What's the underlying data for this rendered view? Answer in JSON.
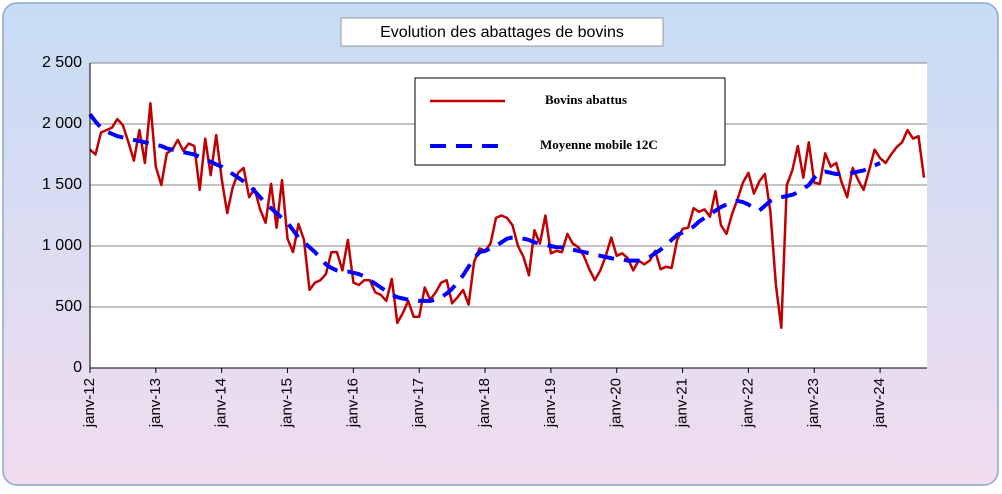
{
  "chart_data": {
    "type": "line",
    "title": "Evolution des abattages de bovins",
    "categories": [
      "janv-12",
      null,
      null,
      null,
      null,
      null,
      null,
      null,
      null,
      null,
      null,
      null,
      "janv-13",
      null,
      null,
      null,
      null,
      null,
      null,
      null,
      null,
      null,
      null,
      null,
      "janv-14",
      null,
      null,
      null,
      null,
      null,
      null,
      null,
      null,
      null,
      null,
      null,
      "janv-15",
      null,
      null,
      null,
      null,
      null,
      null,
      null,
      null,
      null,
      null,
      null,
      "janv-16",
      null,
      null,
      null,
      null,
      null,
      null,
      null,
      null,
      null,
      null,
      null,
      "janv-17",
      null,
      null,
      null,
      null,
      null,
      null,
      null,
      null,
      null,
      null,
      null,
      "janv-18",
      null,
      null,
      null,
      null,
      null,
      null,
      null,
      null,
      null,
      null,
      null,
      "janv-19",
      null,
      null,
      null,
      null,
      null,
      null,
      null,
      null,
      null,
      null,
      null,
      "janv-20",
      null,
      null,
      null,
      null,
      null,
      null,
      null,
      null,
      null,
      null,
      null,
      "janv-21",
      null,
      null,
      null,
      null,
      null,
      null,
      null,
      null,
      null,
      null,
      null,
      "janv-22",
      null,
      null,
      null,
      null,
      null,
      null,
      null,
      null,
      null,
      null,
      null,
      "janv-23",
      null,
      null,
      null,
      null,
      null,
      null,
      null,
      null,
      null,
      null,
      null,
      "janv-24",
      null,
      null,
      null,
      null,
      null,
      null,
      null,
      null
    ],
    "series": [
      {
        "name": "Bovins abattus",
        "color": "#c00000",
        "dash": false,
        "values": [
          1790,
          1750,
          1930,
          1950,
          1970,
          2040,
          1990,
          1850,
          1700,
          1950,
          1680,
          2170,
          1650,
          1500,
          1760,
          1790,
          1870,
          1780,
          1840,
          1820,
          1460,
          1880,
          1580,
          1910,
          1550,
          1270,
          1480,
          1600,
          1640,
          1400,
          1470,
          1300,
          1190,
          1510,
          1150,
          1540,
          1060,
          950,
          1180,
          1050,
          640,
          700,
          720,
          770,
          950,
          950,
          800,
          1050,
          700,
          680,
          720,
          720,
          620,
          600,
          550,
          730,
          370,
          450,
          550,
          420,
          420,
          660,
          560,
          620,
          700,
          720,
          530,
          580,
          640,
          520,
          870,
          980,
          960,
          1020,
          1230,
          1250,
          1230,
          1170,
          1000,
          910,
          760,
          1130,
          1020,
          1250,
          940,
          960,
          950,
          1100,
          1020,
          990,
          920,
          810,
          720,
          800,
          920,
          1070,
          920,
          940,
          900,
          800,
          880,
          850,
          880,
          960,
          810,
          830,
          820,
          1050,
          1140,
          1150,
          1310,
          1280,
          1300,
          1240,
          1450,
          1170,
          1100,
          1260,
          1380,
          1520,
          1600,
          1430,
          1530,
          1590,
          1280,
          680,
          330,
          1500,
          1620,
          1820,
          1560,
          1850,
          1520,
          1510,
          1760,
          1650,
          1680,
          1520,
          1400,
          1640,
          1540,
          1460,
          1620,
          1790,
          1720,
          1680,
          1750,
          1810,
          1850,
          1950,
          1880,
          1900,
          1560
        ]
      },
      {
        "name": "Moyenne mobile 12C",
        "color": "#0000ff",
        "dash": true,
        "values": [
          2080,
          2020,
          1970,
          1940,
          1920,
          1900,
          1890,
          1880,
          1870,
          1860,
          1850,
          1840,
          1830,
          1820,
          1800,
          1790,
          1780,
          1770,
          1760,
          1750,
          1730,
          1710,
          1690,
          1670,
          1650,
          1620,
          1590,
          1560,
          1530,
          1500,
          1450,
          1400,
          1350,
          1310,
          1270,
          1230,
          1190,
          1130,
          1070,
          1030,
          990,
          950,
          900,
          850,
          820,
          800,
          790,
          790,
          780,
          770,
          750,
          720,
          690,
          660,
          630,
          600,
          580,
          570,
          560,
          560,
          550,
          550,
          550,
          560,
          580,
          610,
          650,
          700,
          760,
          830,
          900,
          950,
          960,
          980,
          1000,
          1030,
          1060,
          1070,
          1070,
          1060,
          1050,
          1030,
          1020,
          1010,
          1000,
          990,
          990,
          980,
          970,
          960,
          950,
          940,
          930,
          920,
          910,
          900,
          890,
          890,
          880,
          880,
          880,
          890,
          910,
          940,
          970,
          1010,
          1050,
          1090,
          1110,
          1130,
          1160,
          1200,
          1230,
          1260,
          1290,
          1320,
          1340,
          1360,
          1370,
          1360,
          1340,
          1310,
          1290,
          1330,
          1370,
          1390,
          1400,
          1410,
          1420,
          1440,
          1470,
          1500,
          1560,
          1600,
          1610,
          1600,
          1590,
          1590,
          1590,
          1600,
          1610,
          1620,
          1640,
          1660,
          1680,
          null,
          null,
          null,
          null,
          null,
          null,
          null,
          null
        ]
      }
    ],
    "ylim": [
      0,
      2500
    ],
    "yticks": [
      0,
      500,
      {
        "value": 1000,
        "label": "1 000"
      },
      {
        "value": 1500,
        "label": "1 500"
      },
      {
        "value": 2000,
        "label": "2 000"
      },
      {
        "value": 2500,
        "label": "2 500"
      }
    ],
    "grid": true
  }
}
